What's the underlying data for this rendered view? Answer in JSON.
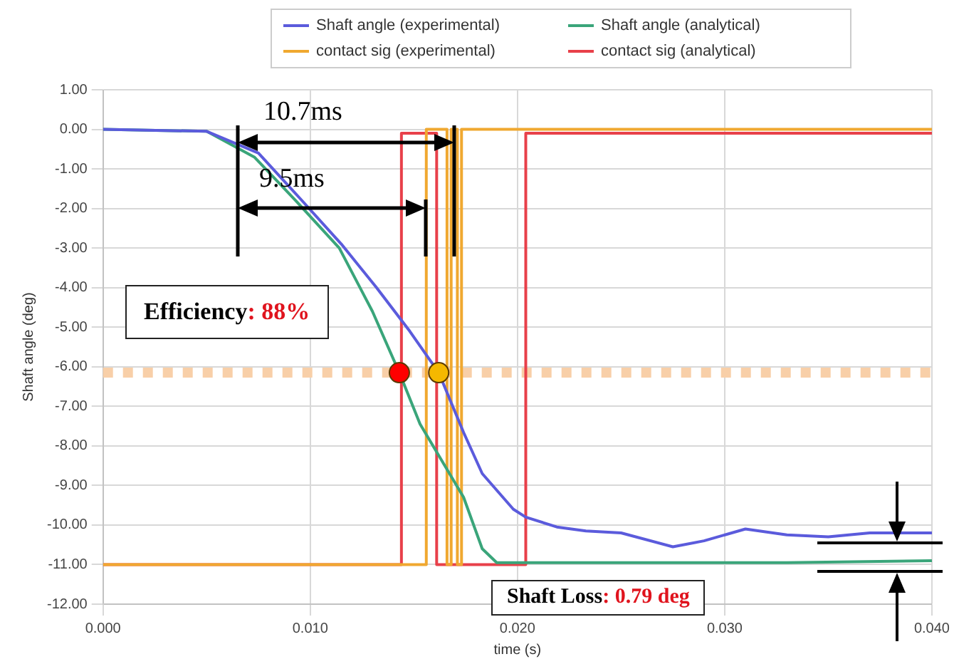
{
  "chart_data": {
    "type": "line",
    "xlabel": "time (s)",
    "ylabel": "Shaft angle (deg)",
    "xlim": [
      0,
      0.04
    ],
    "ylim": [
      -12,
      1
    ],
    "xticks": [
      {
        "value": 0,
        "label": "0.000"
      },
      {
        "value": 0.01,
        "label": "0.010"
      },
      {
        "value": 0.02,
        "label": "0.020"
      },
      {
        "value": 0.03,
        "label": "0.030"
      },
      {
        "value": 0.04,
        "label": "0.040"
      }
    ],
    "yticks": [
      {
        "value": 1,
        "label": "1.00"
      },
      {
        "value": 0,
        "label": "0.00"
      },
      {
        "value": -1,
        "label": "-1.00"
      },
      {
        "value": -2,
        "label": "-2.00"
      },
      {
        "value": -3,
        "label": "-3.00"
      },
      {
        "value": -4,
        "label": "-4.00"
      },
      {
        "value": -5,
        "label": "-5.00"
      },
      {
        "value": -6,
        "label": "-6.00"
      },
      {
        "value": -7,
        "label": "-7.00"
      },
      {
        "value": -8,
        "label": "-8.00"
      },
      {
        "value": -9,
        "label": "-9.00"
      },
      {
        "value": -10,
        "label": "-10.00"
      },
      {
        "value": -11,
        "label": "-11.00"
      },
      {
        "value": -12,
        "label": "-12.00"
      }
    ],
    "grid": true,
    "legend": "top",
    "marker": "none",
    "line_style": "solid",
    "series": [
      {
        "name": "Shaft angle (experimental)",
        "color": "#5b5bdc",
        "x": [
          0,
          0.005,
          0.0075,
          0.0096,
          0.0115,
          0.0132,
          0.0148,
          0.0162,
          0.0174,
          0.0183,
          0.0198,
          0.0204,
          0.0219,
          0.0233,
          0.025,
          0.0275,
          0.029,
          0.031,
          0.033,
          0.035,
          0.037,
          0.04
        ],
        "values": [
          0,
          -0.05,
          -0.6,
          -1.8,
          -2.9,
          -4.0,
          -5.1,
          -6.15,
          -7.66,
          -8.7,
          -9.6,
          -9.8,
          -10.05,
          -10.15,
          -10.2,
          -10.55,
          -10.4,
          -10.1,
          -10.25,
          -10.3,
          -10.2,
          -10.2
        ]
      },
      {
        "name": "Shaft angle (analytical)",
        "color": "#3aa57a",
        "x": [
          0,
          0.005,
          0.0073,
          0.0093,
          0.0114,
          0.013,
          0.0143,
          0.0153,
          0.0174,
          0.0183,
          0.019,
          0.033,
          0.04
        ],
        "values": [
          0,
          -0.05,
          -0.7,
          -1.8,
          -3.0,
          -4.6,
          -6.15,
          -7.45,
          -9.3,
          -10.6,
          -10.95,
          -10.95,
          -10.9
        ]
      },
      {
        "name": "contact sig (experimental)",
        "color": "#f0a830",
        "x": [
          0,
          0.0156,
          0.0156,
          0.0166,
          0.0166,
          0.0168,
          0.0168,
          0.0171,
          0.0171,
          0.0173,
          0.0173,
          0.04
        ],
        "values": [
          -11,
          -11,
          0,
          0,
          -11,
          -11,
          0,
          0,
          -11,
          -11,
          0,
          0
        ]
      },
      {
        "name": "contact sig (analytical)",
        "color": "#e8404a",
        "x": [
          0,
          0.0144,
          0.0144,
          0.0161,
          0.0161,
          0.0204,
          0.0204,
          0.04
        ],
        "values": [
          -11,
          -11,
          -0.1,
          -0.1,
          -11,
          -11,
          -0.1,
          -0.1
        ]
      },
      {
        "type": "scatter",
        "marker": "circle",
        "color": "#ff0000",
        "x": [
          0.0143
        ],
        "values": [
          -6.15
        ]
      },
      {
        "type": "scatter",
        "marker": "circle",
        "color": "#f5b800",
        "x": [
          0.0162
        ],
        "values": [
          -6.15
        ]
      }
    ],
    "ref_lines": [
      {
        "axis": "y",
        "value": -6.15,
        "color": "#f8cfa8",
        "line_style": "dotted"
      }
    ],
    "annotations": [
      {
        "text": "10.7ms",
        "x": 0.0161,
        "y": -0.1
      },
      "9.5ms",
      "Efficiency: 88%",
      "Shaft Loss: 0.79 deg"
    ]
  }
}
